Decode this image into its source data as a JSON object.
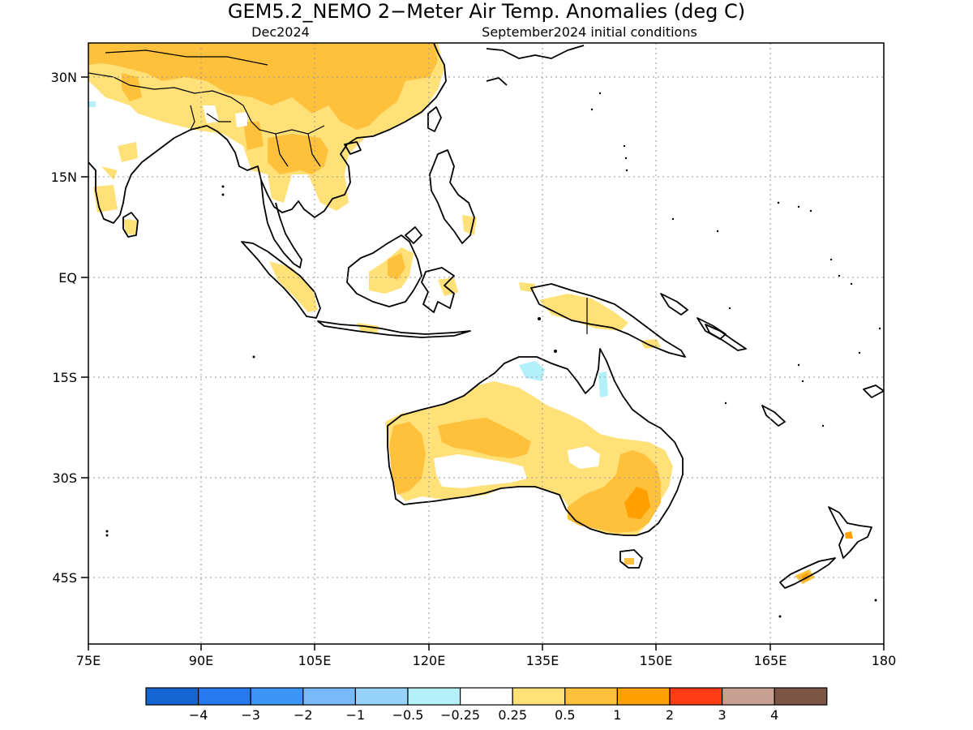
{
  "title": "GEM5.2_NEMO 2−Meter Air Temp. Anomalies (deg C)",
  "subtitle_left": "Dec2024",
  "subtitle_right": "September2024 initial conditions",
  "longitude_labels": [
    "75E",
    "90E",
    "105E",
    "120E",
    "135E",
    "150E",
    "165E",
    "180"
  ],
  "latitude_labels": [
    "30N",
    "15N",
    "EQ",
    "15S",
    "30S",
    "45S"
  ],
  "colorbar": {
    "colors": [
      "#1464d2",
      "#2878f0",
      "#3c96f5",
      "#78b9fa",
      "#96d2fa",
      "#b4f0fa",
      "#ffffff",
      "#ffe178",
      "#ffc03c",
      "#ffa000",
      "#ff3c14",
      "#c8a092",
      "#7d5544"
    ],
    "labels": [
      "−4",
      "−3",
      "−2",
      "−1",
      "−0.5",
      "−0.25",
      "0.25",
      "0.5",
      "1",
      "2",
      "3",
      "4"
    ]
  },
  "colors": {
    "land_outline": "#000000",
    "grid": "#9a9a9a",
    "warm_small": "#ffe178",
    "warm_medium": "#ffc03c",
    "warm_large": "#ffa000",
    "cool_small": "#b4f0fa"
  }
}
